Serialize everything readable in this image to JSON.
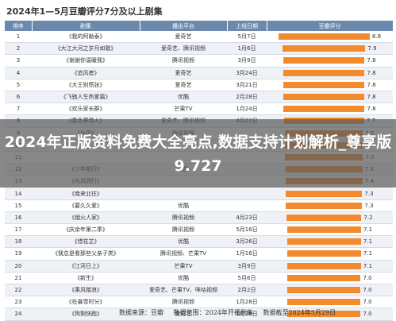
{
  "title": "2024年1—5月豆瓣评分7分及以上剧集",
  "headers": [
    "排序",
    "剧集",
    "播出平台",
    "上线日期",
    "豆瓣评分"
  ],
  "overlay_title": "2024年正版资料免费大全亮点,数据支持计划解析_尊享版9.727",
  "footer": {
    "source": "数据来源：豆瓣",
    "range": "数据范围：2024年开播剧集",
    "cutoff": "数据截至2024年5月29日"
  },
  "chart_data": {
    "type": "table",
    "rows": [
      {
        "rank": "1",
        "name": "《我的阿勒泰》",
        "platform": "爱奇艺",
        "date": "5月7日",
        "score": 8.8
      },
      {
        "rank": "2",
        "name": "《大江大河之岁月如歌》",
        "platform": "爱奇艺、腾讯视频",
        "date": "1月6日",
        "score": 7.9
      },
      {
        "rank": "3",
        "name": "《谢谢你温暖我》",
        "platform": "腾讯视频",
        "date": "3月9日",
        "score": 7.8
      },
      {
        "rank": "4",
        "name": "《追风者》",
        "platform": "爱奇艺",
        "date": "3月24日",
        "score": 7.8
      },
      {
        "rank": "5",
        "name": "《大王别慌张》",
        "platform": "爱奇艺",
        "date": "3月21日",
        "score": 7.8
      },
      {
        "rank": "6",
        "name": "《飞驰人生热爱篇》",
        "platform": "优酷",
        "date": "2月28日",
        "score": 7.8
      },
      {
        "rank": "7",
        "name": "《欢乐家长群》",
        "platform": "芒果TV",
        "date": "1月24日",
        "score": 7.8
      },
      {
        "rank": "8",
        "name": "《春色寄情人》",
        "platform": "爱奇艺、腾讯视频",
        "date": "4月22日",
        "score": 7.7
      },
      {
        "rank": "9",
        "name": "《秋雪》",
        "platform": "腾讯视频",
        "date": "",
        "score": 7.5
      },
      {
        "rank": "10",
        "name": "",
        "platform": "",
        "date": "",
        "score": 7.5
      },
      {
        "rank": "11",
        "name": "",
        "platform": "",
        "date": "",
        "score": 7.5
      },
      {
        "rank": "12",
        "name": "《少年歌行》",
        "platform": "优酷",
        "date": "",
        "score": 7.4
      },
      {
        "rank": "13",
        "name": "《与风同行》",
        "platform": "",
        "date": "",
        "score": 7.4
      },
      {
        "rank": "14",
        "name": "《南来北往》",
        "platform": "",
        "date": "",
        "score": 7.3
      },
      {
        "rank": "15",
        "name": "《要久久爱》",
        "platform": "优酷",
        "date": "",
        "score": 7.3
      },
      {
        "rank": "16",
        "name": "《烟火人家》",
        "platform": "腾讯视频",
        "date": "4月23日",
        "score": 7.2
      },
      {
        "rank": "17",
        "name": "《庆余年第二季》",
        "platform": "腾讯视频",
        "date": "5月16日",
        "score": 7.1
      },
      {
        "rank": "18",
        "name": "《惜花芷》",
        "platform": "优酷",
        "date": "3月26日",
        "score": 7.1
      },
      {
        "rank": "19",
        "name": "《我总是看那些父亲子类》",
        "platform": "腾讯视频、芒果TV",
        "date": "1月16日",
        "score": 7.1
      },
      {
        "rank": "20",
        "name": "《江河日上》",
        "platform": "芒果TV",
        "date": "3月9日",
        "score": 7.1
      },
      {
        "rank": "21",
        "name": "《新生》",
        "platform": "优酷",
        "date": "5月6日",
        "score": 7.0
      },
      {
        "rank": "22",
        "name": "《乘风踏浪》",
        "platform": "爱奇艺、芒果TV、咪咕视频",
        "date": "2月2日",
        "score": 7.0
      },
      {
        "rank": "23",
        "name": "《在暴雪时分》",
        "platform": "腾讯视频",
        "date": "1月28日",
        "score": 7.0
      },
      {
        "rank": "24",
        "name": "《狗剩快跑》",
        "platform": "爱奇艺",
        "date": "1月25日",
        "score": 7.0
      }
    ],
    "bar_color": "#f28a2e",
    "header_color": "#6c88ad",
    "xlim": [
      0,
      9
    ]
  }
}
